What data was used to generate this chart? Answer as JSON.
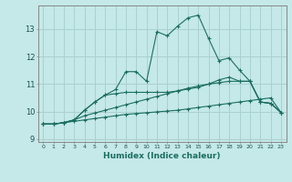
{
  "xlabel": "Humidex (Indice chaleur)",
  "bg_color": "#c5e8e8",
  "grid_color": "#aad0d0",
  "line_color": "#1a6e60",
  "xlim": [
    -0.5,
    23.5
  ],
  "ylim": [
    8.9,
    13.85
  ],
  "yticks": [
    9,
    10,
    11,
    12,
    13
  ],
  "xticks": [
    0,
    1,
    2,
    3,
    4,
    5,
    6,
    7,
    8,
    9,
    10,
    11,
    12,
    13,
    14,
    15,
    16,
    17,
    18,
    19,
    20,
    21,
    22,
    23
  ],
  "s1_x": [
    0,
    1,
    2,
    3,
    4,
    5,
    6,
    7,
    8,
    9,
    10,
    11,
    12,
    13,
    14,
    15,
    16,
    17,
    18,
    19,
    20,
    21,
    22,
    23
  ],
  "s1_y": [
    9.55,
    9.55,
    9.6,
    9.65,
    9.7,
    9.75,
    9.8,
    9.85,
    9.9,
    9.93,
    9.96,
    9.99,
    10.02,
    10.05,
    10.1,
    10.15,
    10.2,
    10.25,
    10.3,
    10.35,
    10.4,
    10.45,
    10.5,
    9.97
  ],
  "s2_x": [
    0,
    1,
    2,
    3,
    4,
    5,
    6,
    7,
    8,
    9,
    10,
    11,
    12,
    13,
    14,
    15,
    16,
    17,
    18,
    19,
    20,
    21,
    22,
    23
  ],
  "s2_y": [
    9.55,
    9.55,
    9.6,
    9.7,
    9.85,
    9.95,
    10.05,
    10.15,
    10.25,
    10.35,
    10.45,
    10.55,
    10.65,
    10.75,
    10.85,
    10.93,
    11.0,
    11.05,
    11.1,
    11.1,
    11.1,
    10.35,
    10.3,
    9.97
  ],
  "s3_x": [
    0,
    1,
    2,
    3,
    4,
    5,
    6,
    7,
    8,
    9,
    10,
    11,
    12,
    13,
    14,
    15,
    16,
    17,
    18,
    19,
    20,
    21,
    22,
    23
  ],
  "s3_y": [
    9.55,
    9.55,
    9.6,
    9.7,
    10.05,
    10.35,
    10.6,
    10.65,
    10.7,
    10.7,
    10.7,
    10.7,
    10.7,
    10.75,
    10.82,
    10.88,
    11.0,
    11.15,
    11.25,
    11.1,
    11.1,
    10.35,
    10.3,
    9.97
  ],
  "s4_x": [
    0,
    1,
    2,
    3,
    4,
    5,
    6,
    7,
    8,
    9,
    10,
    11,
    12,
    13,
    14,
    15,
    16,
    17,
    18,
    19,
    20,
    21,
    22,
    23
  ],
  "s4_y": [
    9.55,
    9.55,
    9.6,
    9.7,
    10.05,
    10.35,
    10.6,
    10.8,
    11.45,
    11.45,
    11.1,
    12.9,
    12.75,
    13.1,
    13.4,
    13.5,
    12.65,
    11.85,
    11.95,
    11.5,
    11.1,
    10.35,
    10.3,
    9.97
  ]
}
